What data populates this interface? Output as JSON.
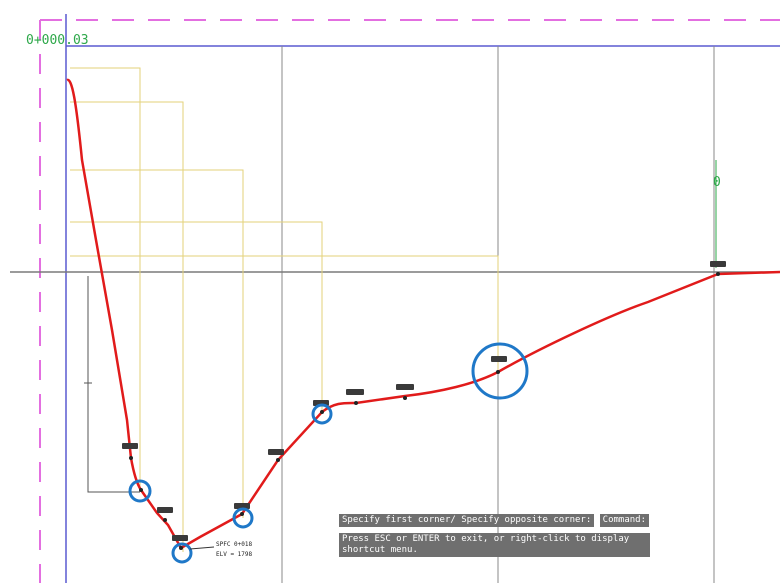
{
  "drawing": {
    "top_dimension_text": "0+000.03",
    "right_dimension_text": "0",
    "callout_text_line1": "SPFC 0+018",
    "callout_text_line2": "ELV = 1798",
    "grip_tag_label": "",
    "colors": {
      "profile_curve": "#e11b1b",
      "selection_circle": "#1f78c8",
      "grid_lines": "#8a8a8a",
      "baseline": "#7a7a7a",
      "frame_magenta": "#e36fe0",
      "frame_blue": "#5a5ad0",
      "guide_yellow": "#e3d27a",
      "dimension_green": "#2ea84a",
      "tag_fill": "#3a3a3a"
    }
  },
  "command_line": {
    "prompt": "Specify first corner/ Specify opposite corner:",
    "command": "Command:",
    "hint": "Press ESC or ENTER to exit, or right-click to display shortcut menu."
  }
}
